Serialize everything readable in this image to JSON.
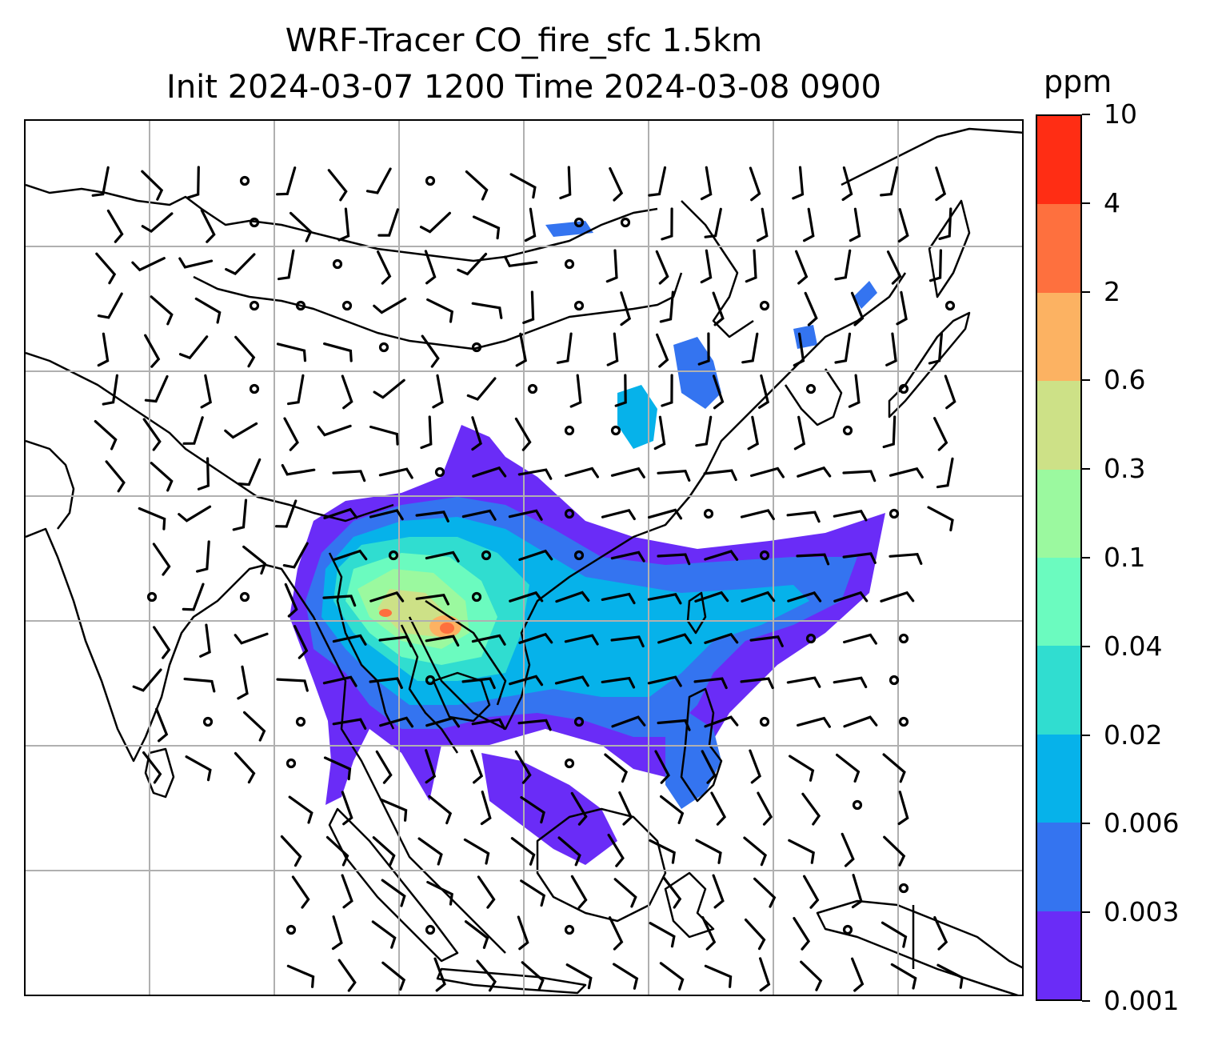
{
  "title_line1": "WRF-Tracer CO_fire_sfc 1.5km",
  "title_line2": "Init 2024-03-07 1200 Time 2024-03-08 0900",
  "colorbar": {
    "unit": "ppm",
    "levels": [
      "0.001",
      "0.003",
      "0.006",
      "0.02",
      "0.04",
      "0.1",
      "0.3",
      "0.6",
      "2",
      "4",
      "10"
    ],
    "colors": [
      "#6a2cf7",
      "#3474f0",
      "#06b2ea",
      "#30ddd0",
      "#6bfbbf",
      "#9bf99f",
      "#cde187",
      "#fcb262",
      "#fe703e",
      "#ff2d14"
    ]
  },
  "map": {
    "region": "South and East Asia",
    "field": "CO_fire_sfc",
    "gridlines": true,
    "coastline_color": "#000000",
    "wind_barb_color": "#000000",
    "gridline_color": "#b0b0b0"
  }
}
